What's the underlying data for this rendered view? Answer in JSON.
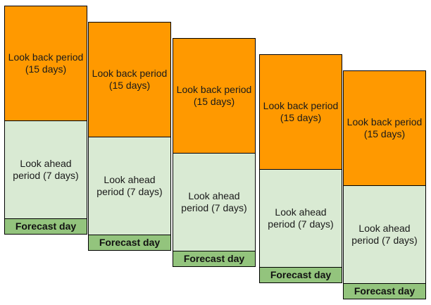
{
  "columns": [
    {
      "look_back": "Look back period (15 days)",
      "look_ahead": "Look ahead period (7 days)",
      "forecast": "Forecast day"
    },
    {
      "look_back": "Look back period (15 days)",
      "look_ahead": "Look ahead period (7 days)",
      "forecast": "Forecast day"
    },
    {
      "look_back": "Look back period (15 days)",
      "look_ahead": "Look ahead period (7 days)",
      "forecast": "Forecast day"
    },
    {
      "look_back": "Look back period (15 days)",
      "look_ahead": "Look ahead period (7 days)",
      "forecast": "Forecast day"
    },
    {
      "look_back": "Look back period (15 days)",
      "look_ahead": "Look ahead period (7 days)",
      "forecast": "Forecast day"
    }
  ],
  "colors": {
    "look_back": "#ff9900",
    "look_ahead": "#d9ead3",
    "forecast": "#93c47d"
  }
}
